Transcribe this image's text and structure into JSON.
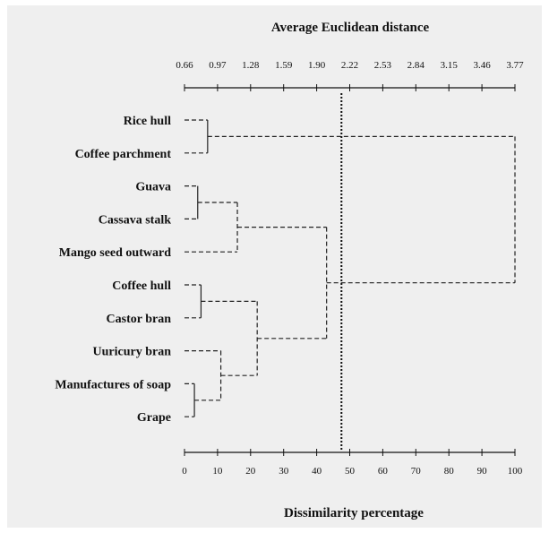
{
  "chart_data": {
    "type": "dendrogram",
    "top_axis": {
      "label": "Average Euclidean distance",
      "ticks": [
        "0.66",
        "0.97",
        "1.28",
        "1.59",
        "1.90",
        "2.22",
        "2.53",
        "2.84",
        "3.15",
        "3.46",
        "3.77"
      ]
    },
    "bottom_axis": {
      "label": "Dissimilarity percentage",
      "range": [
        0,
        100
      ],
      "ticks": [
        0,
        10,
        20,
        30,
        40,
        50,
        60,
        70,
        80,
        90,
        100
      ]
    },
    "leaves": [
      "Rice hull",
      "Coffee parchment",
      "Guava",
      "Cassava stalk",
      "Mango seed outward",
      "Coffee hull",
      "Castor bran",
      "Uuricury bran",
      "Manufactures of soap",
      "Grape"
    ],
    "merges": [
      {
        "left": 0,
        "right": 1,
        "height": 7
      },
      {
        "left": 2,
        "right": 3,
        "height": 4
      },
      {
        "left": "m1",
        "right": 4,
        "height": 16
      },
      {
        "left": 5,
        "right": 6,
        "height": 5
      },
      {
        "left": 8,
        "right": 9,
        "height": 3
      },
      {
        "left": 7,
        "right": "m4",
        "height": 11
      },
      {
        "left": "m3",
        "right": "m5",
        "height": 22
      },
      {
        "left": "m2",
        "right": "m6",
        "height": 43
      },
      {
        "left": "m0",
        "right": "m7",
        "height": 100
      }
    ],
    "cut_line": 47.5
  }
}
